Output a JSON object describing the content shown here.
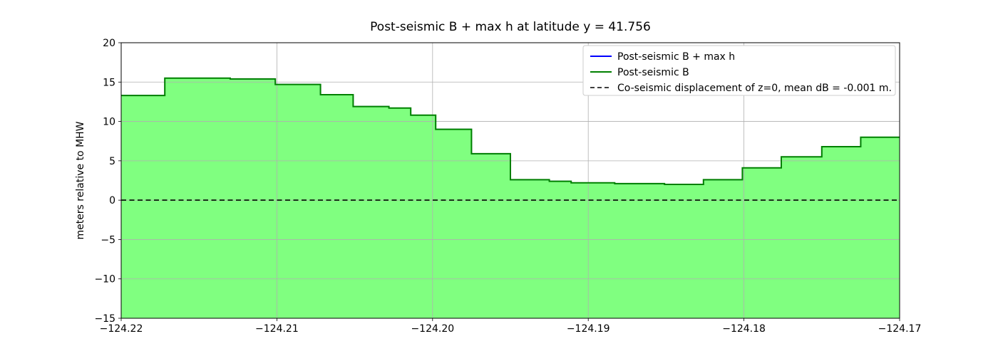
{
  "chart_data": {
    "type": "area",
    "subtype": "step-fill",
    "title": "Post-seismic B + max h at latitude y = 41.756",
    "xlabel": "",
    "ylabel": "meters relative to MHW",
    "xlim": [
      -124.22,
      -124.17
    ],
    "ylim": [
      -15,
      20
    ],
    "grid": true,
    "background": "#ffffff",
    "grid_color": "#b0b0b0",
    "frame_color": "#000000",
    "xticks": [
      {
        "value": -124.22,
        "label": "−124.22"
      },
      {
        "value": -124.21,
        "label": "−124.21"
      },
      {
        "value": -124.2,
        "label": "−124.20"
      },
      {
        "value": -124.19,
        "label": "−124.19"
      },
      {
        "value": -124.18,
        "label": "−124.18"
      },
      {
        "value": -124.17,
        "label": "−124.17"
      }
    ],
    "yticks": [
      {
        "value": -15,
        "label": "−15"
      },
      {
        "value": -10,
        "label": "−10"
      },
      {
        "value": -5,
        "label": "−5"
      },
      {
        "value": 0,
        "label": "0"
      },
      {
        "value": 5,
        "label": "5"
      },
      {
        "value": 10,
        "label": "10"
      },
      {
        "value": 15,
        "label": "15"
      },
      {
        "value": 20,
        "label": "20"
      }
    ],
    "step_edges_x": [
      -124.22,
      -124.2172,
      -124.213,
      -124.2101,
      -124.2072,
      -124.2051,
      -124.2028,
      -124.2014,
      -124.1998,
      -124.1975,
      -124.195,
      -124.1925,
      -124.1911,
      -124.1883,
      -124.1851,
      -124.1826,
      -124.1801,
      -124.1776,
      -124.175,
      -124.1725,
      -124.17
    ],
    "series": [
      {
        "name": "Post-seismic B + max h",
        "color": "#0000ff",
        "style": "step",
        "values": [
          13.3,
          15.5,
          15.4,
          14.7,
          13.4,
          11.9,
          11.7,
          10.8,
          9.0,
          5.9,
          2.6,
          2.4,
          2.2,
          2.1,
          2.0,
          2.6,
          4.1,
          5.5,
          6.8,
          8.0
        ]
      },
      {
        "name": "Post-seismic B",
        "color": "#008000",
        "fill_color": "#80ff80",
        "style": "step-area",
        "values": [
          13.3,
          15.5,
          15.4,
          14.7,
          13.4,
          11.9,
          11.7,
          10.8,
          9.0,
          5.9,
          2.6,
          2.4,
          2.2,
          2.1,
          2.0,
          2.6,
          4.1,
          5.5,
          6.8,
          8.0
        ]
      }
    ],
    "hline": {
      "label": "Co-seismic displacement of z=0, mean dB = -0.001 m.",
      "y": 0,
      "color": "#000000",
      "dash": true
    },
    "legend": {
      "position": "upper right",
      "entries": [
        {
          "label": "Post-seismic B + max h",
          "color": "#0000ff",
          "dash": false
        },
        {
          "label": "Post-seismic B",
          "color": "#008000",
          "dash": false
        },
        {
          "label": "Co-seismic displacement of z=0, mean dB = -0.001 m.",
          "color": "#000000",
          "dash": true
        }
      ]
    }
  }
}
